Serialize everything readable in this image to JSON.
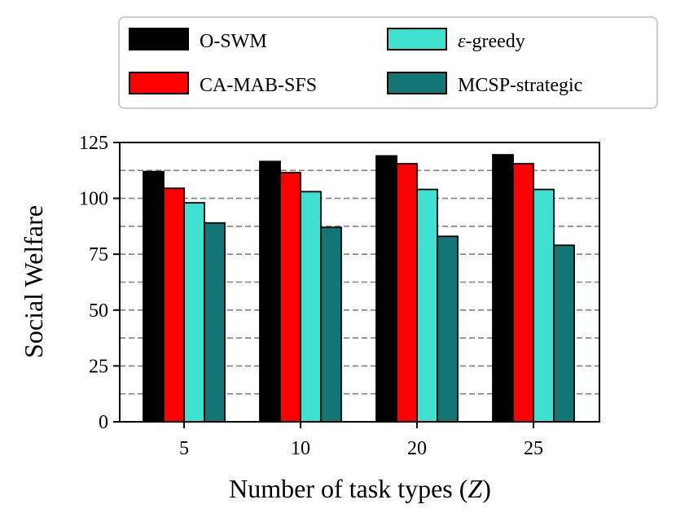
{
  "chart_data": {
    "type": "bar",
    "title": "",
    "xlabel": "Number of task types",
    "xlabel_var": "Z",
    "ylabel": "Social Welfare",
    "categories": [
      "5",
      "10",
      "20",
      "25"
    ],
    "ylim": [
      0,
      125
    ],
    "yticks": [
      0,
      25,
      50,
      75,
      100,
      125
    ],
    "gridlines_y": [
      12.5,
      25,
      37.5,
      50,
      62.5,
      75,
      87.5,
      100,
      112.5,
      125
    ],
    "legend_position": "top",
    "series": [
      {
        "name": "O-SWM",
        "color": "#000000",
        "values": [
          112,
          116.5,
          119,
          119.5
        ]
      },
      {
        "name": "CA-MAB-SFS",
        "color": "#ff0000",
        "values": [
          104.5,
          111.5,
          115.5,
          115.5
        ]
      },
      {
        "name": "ε-greedy",
        "name_symbol": "ε",
        "name_rest": "-greedy",
        "color": "#40e0d0",
        "values": [
          98,
          103,
          104,
          104
        ]
      },
      {
        "name": "MCSP-strategic",
        "color": "#137676",
        "values": [
          89,
          87,
          83,
          79
        ]
      }
    ]
  }
}
